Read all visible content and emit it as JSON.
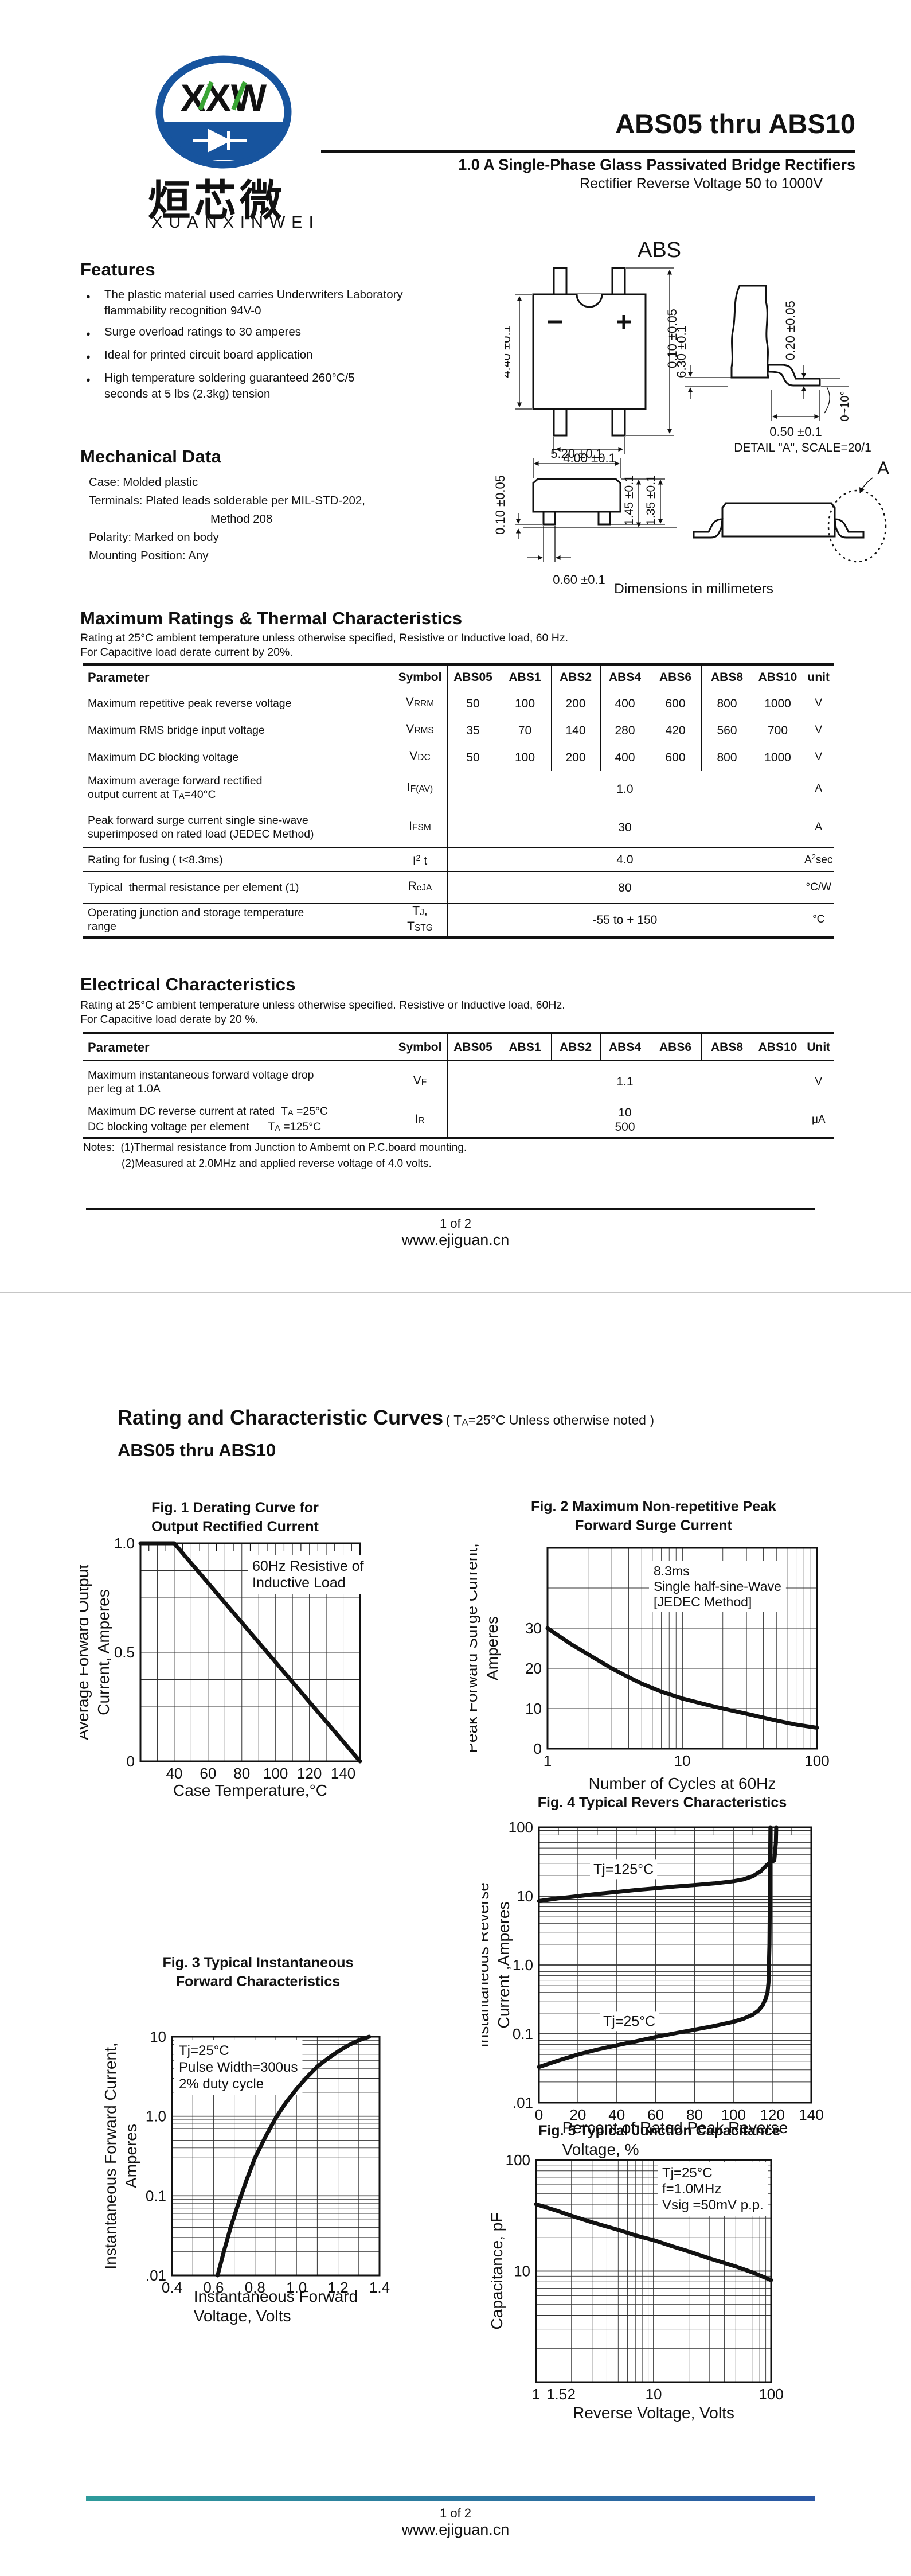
{
  "colors": {
    "logo_blue": "#17549e",
    "logo_green": "#3aa535",
    "footer_bar_left": "#2e9b9b",
    "footer_bar_right": "#2a56a4",
    "text": "#111111"
  },
  "logo": {
    "letters": "XXW",
    "chinese": "烜芯微",
    "pinyin": "XUANXINWEI"
  },
  "header": {
    "title": "ABS05 thru ABS10",
    "subtitle": "1.0 A Single-Phase Glass Passivated Bridge Rectifiers",
    "voltage_line": "Rectifier Reverse Voltage 50 to 1000V",
    "package": "ABS"
  },
  "features": {
    "title": "Features",
    "items": [
      "The plastic material used carries Underwriters Laboratory\nflammability recognition 94V-0",
      "Surge overload ratings to 30 amperes",
      "Ideal for printed circuit board application",
      "High temperature soldering guaranteed 260°C/5\nseconds at 5 lbs (2.3kg) tension"
    ]
  },
  "mechanical": {
    "title": "Mechanical Data",
    "lines": [
      {
        "text": "Case: Molded plastic",
        "indent": false
      },
      {
        "text": "Terminals: Plated leads solderable per MIL-STD-202,",
        "indent": false
      },
      {
        "text": "Method 208",
        "indent": true
      },
      {
        "text": "Polarity: Marked on body",
        "indent": false
      },
      {
        "text": "Mounting Position: Any",
        "indent": false
      }
    ]
  },
  "package_diagram": {
    "caption": "Dimensions in millimeters",
    "detail_title": "DETAIL \"A\", SCALE=20/1",
    "detail_label": "A",
    "front": {
      "height": "4.40 ±0.1",
      "total_height": "6.30 ±0.1",
      "width": "4.00 ±0.1",
      "minus": "−",
      "plus": "+"
    },
    "lead": {
      "standoff": "0.10 ±0.05",
      "thickness": "0.20 ±0.05",
      "foot": "0.50 ±0.1",
      "angle": "0~10°"
    },
    "side": {
      "standoff": "0.10 ±0.05",
      "body_width": "5.20 ±0.1",
      "h1": "1.45 ±0.1",
      "h2": "1.35 ±0.1",
      "lead_width": "0.60 ±0.1"
    }
  },
  "max_ratings": {
    "title": "Maximum Ratings & Thermal Characteristics",
    "note1": "Rating at 25°C ambient temperature unless otherwise specified, Resistive or Inductive load, 60 Hz.",
    "note2": "For Capacitive load derate current by 20%.",
    "headers": [
      "Parameter",
      "Symbol",
      "ABS05",
      "ABS1",
      "ABS2",
      "ABS4",
      "ABS6",
      "ABS8",
      "ABS10",
      "unit"
    ],
    "rows": [
      {
        "param": "Maximum repetitive peak reverse voltage",
        "symbol": "V~RRM~",
        "values": [
          "50",
          "100",
          "200",
          "400",
          "600",
          "800",
          "1000"
        ],
        "unit": "V"
      },
      {
        "param": "Maximum RMS bridge input voltage",
        "symbol": "V~RMS~",
        "values": [
          "35",
          "70",
          "140",
          "280",
          "420",
          "560",
          "700"
        ],
        "unit": "V"
      },
      {
        "param": "Maximum DC blocking voltage",
        "symbol": "V~DC~",
        "values": [
          "50",
          "100",
          "200",
          "400",
          "600",
          "800",
          "1000"
        ],
        "unit": "V"
      },
      {
        "param": "Maximum average forward rectified\noutput current at T~A~=40°C",
        "symbol": "I~F(AV)~",
        "span": "1.0",
        "unit": "A"
      },
      {
        "param": "Peak forward surge current single sine-wave\nsuperimposed on rated load (JEDEC Method)",
        "symbol": "I~FSM~",
        "span": "30",
        "unit": "A"
      },
      {
        "param": "Rating for fusing ( t<8.3ms)",
        "symbol": "I^2^ t",
        "span": "4.0",
        "unit": "A^2^sec"
      },
      {
        "param": "Typical  thermal resistance per element (1)",
        "symbol": "R~eJA~",
        "span": "80",
        "unit": "°C/W"
      },
      {
        "param": "Operating junction and storage temperature\nrange",
        "symbol": "T~J~,\nT~STG~",
        "span": "-55 to + 150",
        "unit": "°C"
      }
    ]
  },
  "electrical": {
    "title": "Electrical Characteristics",
    "note1": "Rating at 25°C ambient temperature unless otherwise specified. Resistive or Inductive load, 60Hz.",
    "note2": "For Capacitive load derate by 20 %.",
    "headers": [
      "Parameter",
      "Symbol",
      "ABS05",
      "ABS1",
      "ABS2",
      "ABS4",
      "ABS6",
      "ABS8",
      "ABS10",
      "Unit"
    ],
    "rows": [
      {
        "param": "Maximum instantaneous forward voltage drop\nper leg at 1.0A",
        "symbol": "V~F~",
        "span": "1.1",
        "unit": "V"
      },
      {
        "param": "Maximum DC reverse current at rated  T~A~ =25°C\nDC blocking voltage per element      T~A~ =125°C",
        "symbol": "I~R~",
        "span": "10\n500",
        "unit": "μA"
      }
    ]
  },
  "notes": {
    "line1": "Notes:  (1)Thermal resistance from Junction to Ambemt on P.C.board mounting.",
    "line2": "(2)Measured at 2.0MHz and applied reverse voltage of 4.0 volts."
  },
  "footer": {
    "page": "1 of 2",
    "site": "www.ejiguan.cn"
  },
  "page2": {
    "title": "Rating and Characteristic Curves",
    "title_note": "( T~A~=25°C Unless otherwise noted )",
    "subtitle": "ABS05 thru ABS10"
  },
  "chart_data": [
    {
      "id": "fig1",
      "type": "line",
      "title": "Fig. 1 Derating Curve for\nOutput Rectified Current",
      "xlabel": "Case Temperature,°C",
      "ylabel": "Average Forward Output\nCurrent, Amperes",
      "xscale": "linear",
      "yscale": "linear",
      "xlim": [
        20,
        150
      ],
      "ylim": [
        0,
        1
      ],
      "xgrid": 10,
      "ygrid": 0.125,
      "topticks": 5,
      "xticks": [
        [
          40,
          "40"
        ],
        [
          60,
          "60"
        ],
        [
          80,
          "80"
        ],
        [
          100,
          "100"
        ],
        [
          120,
          "120"
        ],
        [
          140,
          "140"
        ]
      ],
      "yticks": [
        [
          0,
          "0"
        ],
        [
          0.5,
          "0.5"
        ],
        [
          1,
          "1.0"
        ]
      ],
      "annotation": "60Hz Resistive of\nInductive Load",
      "series": [
        {
          "name": "derating-curve",
          "points": [
            [
              20,
              1
            ],
            [
              40,
              1
            ],
            [
              150,
              0
            ]
          ]
        }
      ]
    },
    {
      "id": "fig2",
      "type": "line",
      "title": "Fig. 2 Maximum Non-repetitive Peak\nForward Surge Current",
      "xlabel": "Number of Cycles at 60Hz",
      "ylabel": "Peak Forward Surge Current,\nAmperes",
      "xscale": "log",
      "yscale": "linear",
      "xlim": [
        1,
        100
      ],
      "ylim": [
        0,
        50
      ],
      "ygrid": 10,
      "xticks": [
        [
          1,
          "1"
        ],
        [
          10,
          "10"
        ],
        [
          100,
          "100"
        ]
      ],
      "yticks": [
        [
          0,
          "0"
        ],
        [
          10,
          "10"
        ],
        [
          20,
          "20"
        ],
        [
          30,
          "30"
        ]
      ],
      "annotation": "8.3ms\nSingle half-sine-Wave\n[JEDEC Method]",
      "series": [
        {
          "name": "surge-current",
          "points": [
            [
              1,
              30
            ],
            [
              1.5,
              26
            ],
            [
              2,
              23.5
            ],
            [
              3,
              20
            ],
            [
              4,
              17.8
            ],
            [
              5,
              16.2
            ],
            [
              7,
              14.2
            ],
            [
              10,
              12.5
            ],
            [
              15,
              11
            ],
            [
              20,
              10
            ],
            [
              30,
              8.7
            ],
            [
              50,
              7
            ],
            [
              70,
              6
            ],
            [
              100,
              5.2
            ]
          ]
        }
      ]
    },
    {
      "id": "fig3",
      "type": "line",
      "title": "Fig. 3 Typical Instantaneous\nForward Characteristics",
      "xlabel": "Instantaneous Forward\nVoltage, Volts",
      "ylabel": "Instantaneous Forward Current,\nAmperes",
      "xscale": "linear",
      "yscale": "log",
      "xlim": [
        0.4,
        1.4
      ],
      "ylim": [
        0.01,
        10
      ],
      "xgrid": 0.1,
      "xticks": [
        [
          0.4,
          "0.4"
        ],
        [
          0.6,
          "0.6"
        ],
        [
          0.8,
          "0.8"
        ],
        [
          1,
          "1.0"
        ],
        [
          1.2,
          "1.2"
        ],
        [
          1.4,
          "1.4"
        ]
      ],
      "yticks": [
        [
          10,
          "10"
        ],
        [
          1,
          "1.0"
        ],
        [
          0.1,
          "0.1"
        ],
        [
          0.01,
          ".01"
        ]
      ],
      "annotation": "Tj=25°C\nPulse Width=300us\n2% duty cycle",
      "series": [
        {
          "name": "forward-characteristic",
          "points": [
            [
              0.62,
              0.01
            ],
            [
              0.65,
              0.02
            ],
            [
              0.68,
              0.038
            ],
            [
              0.72,
              0.08
            ],
            [
              0.76,
              0.16
            ],
            [
              0.8,
              0.3
            ],
            [
              0.85,
              0.55
            ],
            [
              0.9,
              0.95
            ],
            [
              0.95,
              1.5
            ],
            [
              1,
              2.2
            ],
            [
              1.05,
              3.1
            ],
            [
              1.1,
              4.2
            ],
            [
              1.15,
              5.3
            ],
            [
              1.2,
              6.5
            ],
            [
              1.25,
              7.8
            ],
            [
              1.3,
              9
            ],
            [
              1.35,
              10
            ]
          ]
        }
      ]
    },
    {
      "id": "fig4",
      "type": "line",
      "title": "Fig. 4 Typical Revers Characteristics",
      "xlabel": "Percent of Rated Peak Reverse\nVoltage, %",
      "ylabel": "Instantaneous Reverse\nCurrent ,Amperes",
      "xscale": "linear",
      "yscale": "log",
      "xlim": [
        0,
        140
      ],
      "ylim": [
        0.01,
        100
      ],
      "xgrid": 20,
      "topticks": 10,
      "xticks": [
        [
          0,
          "0"
        ],
        [
          20,
          "20"
        ],
        [
          40,
          "40"
        ],
        [
          60,
          "60"
        ],
        [
          80,
          "80"
        ],
        [
          100,
          "100"
        ],
        [
          120,
          "120"
        ],
        [
          140,
          "140"
        ]
      ],
      "yticks": [
        [
          100,
          "100"
        ],
        [
          10,
          "10"
        ],
        [
          1,
          "1.0"
        ],
        [
          0.1,
          "0.1"
        ],
        [
          0.01,
          ".01"
        ]
      ],
      "series": [
        {
          "name": "tj-125c",
          "label": "Tj=125°C",
          "label_at": [
            28,
            21
          ],
          "points": [
            [
              0,
              8.5
            ],
            [
              10,
              9.3
            ],
            [
              20,
              10
            ],
            [
              30,
              10.8
            ],
            [
              40,
              11.5
            ],
            [
              50,
              12.3
            ],
            [
              60,
              13
            ],
            [
              70,
              13.8
            ],
            [
              80,
              14.5
            ],
            [
              90,
              15.3
            ],
            [
              100,
              16.5
            ],
            [
              105,
              17.5
            ],
            [
              110,
              19.5
            ],
            [
              114,
              23
            ],
            [
              117,
              28
            ],
            [
              119,
              31
            ],
            [
              121,
              33
            ],
            [
              121.8,
              60
            ],
            [
              122,
              100
            ]
          ]
        },
        {
          "name": "tj-25c",
          "label": "Tj=25°C",
          "label_at": [
            33,
            0.13
          ],
          "points": [
            [
              0,
              0.033
            ],
            [
              10,
              0.041
            ],
            [
              20,
              0.05
            ],
            [
              30,
              0.059
            ],
            [
              40,
              0.068
            ],
            [
              50,
              0.078
            ],
            [
              60,
              0.09
            ],
            [
              70,
              0.102
            ],
            [
              80,
              0.115
            ],
            [
              90,
              0.13
            ],
            [
              100,
              0.15
            ],
            [
              105,
              0.165
            ],
            [
              110,
              0.19
            ],
            [
              113,
              0.22
            ],
            [
              115,
              0.26
            ],
            [
              116.5,
              0.32
            ],
            [
              117.5,
              0.4
            ],
            [
              118,
              0.55
            ],
            [
              118.5,
              2
            ],
            [
              119,
              100
            ]
          ]
        }
      ]
    },
    {
      "id": "fig5",
      "type": "line",
      "title": "Fig. 5 Typical Junction Capacitance",
      "xlabel": "Reverse Voltage, Volts",
      "ylabel": "Capacitance, pF",
      "xscale": "log",
      "yscale": "log",
      "xlim": [
        1,
        100
      ],
      "ylim": [
        1,
        100
      ],
      "xticks": [
        [
          1,
          "1"
        ],
        [
          1.5,
          "1.5"
        ],
        [
          2,
          "2"
        ],
        [
          10,
          "10"
        ],
        [
          100,
          "100"
        ]
      ],
      "yticks": [
        [
          100,
          "100"
        ],
        [
          10,
          "10"
        ]
      ],
      "annotation": "Tj=25°C\nf=1.0MHz\nVsig =50mV p.p.",
      "series": [
        {
          "name": "junction-capacitance",
          "points": [
            [
              1,
              40
            ],
            [
              1.5,
              35
            ],
            [
              2,
              31.5
            ],
            [
              3,
              27.5
            ],
            [
              5,
              23.5
            ],
            [
              7,
              21
            ],
            [
              10,
              19
            ],
            [
              15,
              16.5
            ],
            [
              20,
              15
            ],
            [
              30,
              13
            ],
            [
              50,
              11
            ],
            [
              70,
              9.7
            ],
            [
              100,
              8.3
            ]
          ]
        }
      ]
    }
  ]
}
